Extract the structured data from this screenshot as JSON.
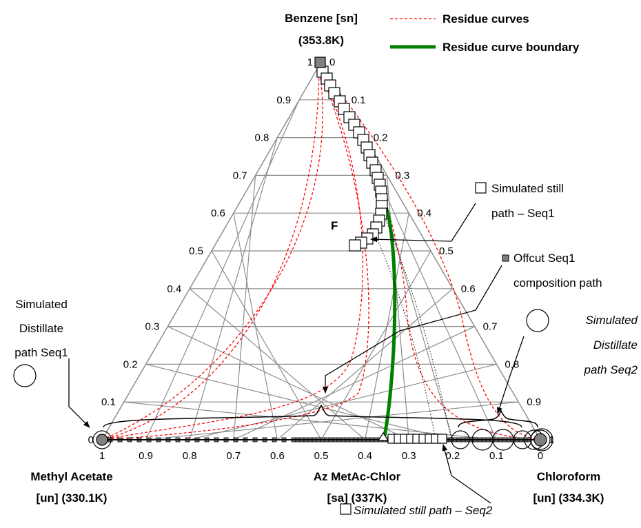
{
  "vertices": {
    "top": {
      "name": "Benzene [sn]",
      "temp": "(353.8K)"
    },
    "left": {
      "name": "Methyl Acetate",
      "detail": "[un] (330.1K)"
    },
    "right": {
      "name": "Chloroform",
      "detail": "[un] (334.3K)"
    },
    "azeotrope": {
      "name": "Az MetAc-Chlor",
      "detail": "[sa] (337K)"
    }
  },
  "legend": {
    "residue_curves": "Residue curves",
    "boundary": "Residue curve boundary"
  },
  "ticks": {
    "left_axis": [
      "0",
      "0.1",
      "0.2",
      "0.3",
      "0.4",
      "0.5",
      "0.6",
      "0.7",
      "0.8",
      "0.9",
      "1"
    ],
    "right_axis": [
      "0",
      "0.1",
      "0.2",
      "0.3",
      "0.4",
      "0.5",
      "0.6",
      "0.7",
      "0.8",
      "0.9",
      "1"
    ],
    "bottom_axis": [
      "1",
      "0.9",
      "0.8",
      "0.7",
      "0.6",
      "0.5",
      "0.4",
      "0.3",
      "0.2",
      "0.1",
      "0"
    ]
  },
  "feed_label": "F",
  "annotations": {
    "still_seq1": [
      "Simulated still",
      "path – Seq1"
    ],
    "offcut_seq1": [
      "Offcut Seq1",
      "composition path"
    ],
    "distillate_seq1": [
      "Simulated",
      "Distillate",
      "path Seq1"
    ],
    "distillate_seq2": [
      "Simulated",
      "Distillate",
      "path Seq2"
    ],
    "still_seq2": "Simulated still path – Seq2"
  },
  "colors": {
    "grid": "#8c8c8c",
    "residue_curve": "#ff0000",
    "boundary": "#008000",
    "marker": "#808080"
  }
}
